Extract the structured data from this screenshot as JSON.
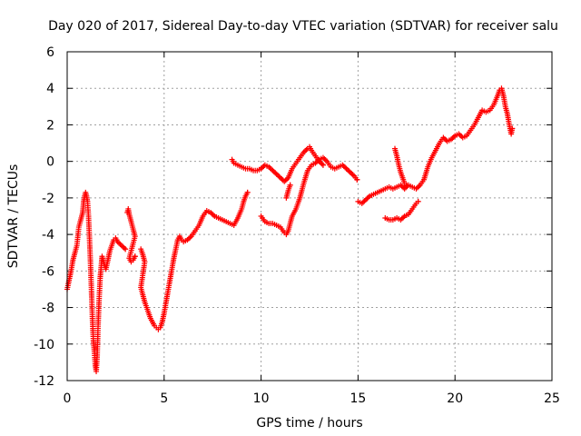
{
  "chart_data": {
    "type": "scatter",
    "title": "Day 020 of 2017, Sidereal Day-to-day VTEC variation (SDTVAR) for receiver salu",
    "xlabel": "GPS time / hours",
    "ylabel": "SDTVAR / TECUs",
    "xlim": [
      0,
      25
    ],
    "ylim": [
      -12,
      6
    ],
    "xticks": [
      0,
      5,
      10,
      15,
      20,
      25
    ],
    "yticks": [
      -12,
      -10,
      -8,
      -6,
      -4,
      -2,
      0,
      2,
      4,
      6
    ],
    "grid": true,
    "marker": "plus",
    "color": "#ff0000",
    "series": [
      {
        "points": [
          [
            0.0,
            -7.0
          ],
          [
            0.1,
            -6.5
          ],
          [
            0.2,
            -6.0
          ],
          [
            0.3,
            -5.4
          ],
          [
            0.4,
            -5.0
          ],
          [
            0.5,
            -4.6
          ],
          [
            0.6,
            -3.6
          ],
          [
            0.7,
            -3.2
          ],
          [
            0.8,
            -2.8
          ],
          [
            0.85,
            -2.2
          ],
          [
            0.9,
            -1.9
          ],
          [
            0.95,
            -1.7
          ],
          [
            1.0,
            -1.9
          ],
          [
            1.05,
            -2.2
          ],
          [
            1.1,
            -3.0
          ],
          [
            1.15,
            -4.2
          ],
          [
            1.2,
            -5.5
          ],
          [
            1.25,
            -7.0
          ],
          [
            1.3,
            -8.6
          ],
          [
            1.35,
            -9.8
          ],
          [
            1.4,
            -10.4
          ],
          [
            1.45,
            -11.2
          ],
          [
            1.5,
            -11.5
          ],
          [
            1.55,
            -10.6
          ],
          [
            1.6,
            -8.8
          ],
          [
            1.65,
            -7.5
          ],
          [
            1.7,
            -6.4
          ],
          [
            1.75,
            -5.8
          ],
          [
            1.8,
            -5.2
          ],
          [
            1.9,
            -5.6
          ],
          [
            2.0,
            -5.9
          ],
          [
            2.1,
            -5.4
          ],
          [
            2.2,
            -4.9
          ],
          [
            2.3,
            -4.6
          ],
          [
            2.4,
            -4.3
          ],
          [
            2.5,
            -4.2
          ],
          [
            2.6,
            -4.4
          ],
          [
            2.8,
            -4.6
          ],
          [
            3.0,
            -4.8
          ]
        ]
      },
      {
        "points": [
          [
            3.1,
            -2.8
          ],
          [
            3.15,
            -2.6
          ],
          [
            3.2,
            -2.9
          ],
          [
            3.3,
            -3.3
          ],
          [
            3.4,
            -3.7
          ],
          [
            3.5,
            -4.1
          ],
          [
            3.2,
            -5.3
          ],
          [
            3.3,
            -5.5
          ],
          [
            3.4,
            -5.4
          ],
          [
            3.5,
            -5.2
          ]
        ]
      },
      {
        "points": [
          [
            3.8,
            -4.8
          ],
          [
            3.9,
            -5.1
          ],
          [
            4.0,
            -5.5
          ],
          [
            3.8,
            -6.9
          ],
          [
            3.9,
            -7.3
          ],
          [
            4.0,
            -7.7
          ],
          [
            4.1,
            -8.0
          ],
          [
            4.2,
            -8.3
          ],
          [
            4.3,
            -8.6
          ],
          [
            4.4,
            -8.8
          ],
          [
            4.5,
            -9.0
          ],
          [
            4.6,
            -9.1
          ],
          [
            4.7,
            -9.2
          ],
          [
            4.8,
            -9.1
          ],
          [
            4.9,
            -8.8
          ],
          [
            5.0,
            -8.3
          ],
          [
            5.1,
            -7.7
          ],
          [
            5.2,
            -7.1
          ],
          [
            5.3,
            -6.5
          ],
          [
            5.4,
            -5.9
          ],
          [
            5.5,
            -5.3
          ],
          [
            5.6,
            -4.8
          ],
          [
            5.7,
            -4.3
          ],
          [
            5.8,
            -4.1
          ],
          [
            5.9,
            -4.3
          ],
          [
            6.0,
            -4.4
          ],
          [
            6.2,
            -4.3
          ],
          [
            6.4,
            -4.1
          ],
          [
            6.6,
            -3.8
          ],
          [
            6.8,
            -3.5
          ],
          [
            7.0,
            -3.0
          ],
          [
            7.2,
            -2.7
          ],
          [
            7.4,
            -2.8
          ],
          [
            7.6,
            -3.0
          ],
          [
            7.8,
            -3.1
          ],
          [
            8.0,
            -3.2
          ],
          [
            8.2,
            -3.3
          ],
          [
            8.4,
            -3.4
          ],
          [
            8.6,
            -3.5
          ],
          [
            8.8,
            -3.1
          ],
          [
            9.0,
            -2.6
          ],
          [
            9.1,
            -2.2
          ],
          [
            9.2,
            -1.9
          ],
          [
            9.3,
            -1.7
          ]
        ]
      },
      {
        "points": [
          [
            8.5,
            0.1
          ],
          [
            8.6,
            -0.1
          ],
          [
            8.8,
            -0.2
          ],
          [
            9.0,
            -0.3
          ],
          [
            9.2,
            -0.4
          ],
          [
            9.4,
            -0.4
          ],
          [
            9.6,
            -0.5
          ],
          [
            9.8,
            -0.5
          ],
          [
            10.0,
            -0.4
          ],
          [
            10.2,
            -0.2
          ],
          [
            10.4,
            -0.3
          ],
          [
            10.6,
            -0.5
          ],
          [
            10.8,
            -0.7
          ],
          [
            11.0,
            -0.9
          ],
          [
            11.2,
            -1.1
          ],
          [
            11.4,
            -0.9
          ],
          [
            11.6,
            -0.4
          ],
          [
            11.8,
            -0.1
          ],
          [
            12.0,
            0.2
          ],
          [
            12.2,
            0.5
          ],
          [
            12.4,
            0.7
          ],
          [
            12.5,
            0.8
          ],
          [
            12.6,
            0.6
          ],
          [
            12.8,
            0.3
          ],
          [
            13.0,
            0.0
          ],
          [
            13.2,
            -0.2
          ]
        ]
      },
      {
        "points": [
          [
            10.0,
            -3.0
          ],
          [
            10.2,
            -3.3
          ],
          [
            10.4,
            -3.4
          ],
          [
            10.6,
            -3.4
          ],
          [
            10.8,
            -3.5
          ],
          [
            11.0,
            -3.6
          ],
          [
            11.2,
            -3.9
          ],
          [
            11.3,
            -4.0
          ],
          [
            11.4,
            -3.8
          ],
          [
            11.5,
            -3.4
          ],
          [
            11.6,
            -3.0
          ],
          [
            11.8,
            -2.6
          ],
          [
            12.0,
            -2.0
          ],
          [
            12.2,
            -1.2
          ],
          [
            12.4,
            -0.5
          ],
          [
            12.6,
            -0.2
          ],
          [
            12.8,
            -0.1
          ],
          [
            13.0,
            0.1
          ],
          [
            13.2,
            0.2
          ],
          [
            13.4,
            0.0
          ],
          [
            13.6,
            -0.3
          ],
          [
            13.8,
            -0.4
          ],
          [
            14.0,
            -0.3
          ],
          [
            14.2,
            -0.2
          ],
          [
            14.4,
            -0.4
          ],
          [
            14.6,
            -0.6
          ],
          [
            14.8,
            -0.8
          ],
          [
            14.95,
            -1.0
          ]
        ]
      },
      {
        "points": [
          [
            11.3,
            -2.0
          ],
          [
            11.4,
            -1.6
          ],
          [
            11.5,
            -1.3
          ]
        ]
      },
      {
        "points": [
          [
            15.0,
            -2.2
          ],
          [
            15.2,
            -2.3
          ],
          [
            15.4,
            -2.1
          ],
          [
            15.6,
            -1.9
          ],
          [
            15.8,
            -1.8
          ],
          [
            16.0,
            -1.7
          ],
          [
            16.2,
            -1.6
          ],
          [
            16.4,
            -1.5
          ],
          [
            16.6,
            -1.4
          ],
          [
            16.8,
            -1.5
          ],
          [
            17.0,
            -1.4
          ],
          [
            17.2,
            -1.3
          ],
          [
            17.4,
            -1.5
          ],
          [
            17.6,
            -1.3
          ],
          [
            17.8,
            -1.4
          ],
          [
            18.0,
            -1.5
          ],
          [
            18.2,
            -1.3
          ],
          [
            18.4,
            -1.0
          ],
          [
            18.6,
            -0.3
          ],
          [
            18.8,
            0.2
          ],
          [
            19.0,
            0.6
          ],
          [
            19.2,
            1.0
          ],
          [
            19.4,
            1.3
          ],
          [
            19.6,
            1.1
          ],
          [
            19.8,
            1.2
          ],
          [
            20.0,
            1.4
          ],
          [
            20.2,
            1.5
          ],
          [
            20.4,
            1.3
          ],
          [
            20.6,
            1.4
          ],
          [
            20.8,
            1.7
          ],
          [
            21.0,
            2.0
          ],
          [
            21.2,
            2.4
          ],
          [
            21.4,
            2.8
          ],
          [
            21.6,
            2.7
          ],
          [
            21.8,
            2.8
          ],
          [
            22.0,
            3.1
          ],
          [
            22.2,
            3.6
          ],
          [
            22.3,
            3.9
          ],
          [
            22.4,
            4.0
          ],
          [
            22.5,
            3.6
          ],
          [
            22.6,
            3.0
          ],
          [
            22.7,
            2.6
          ],
          [
            22.8,
            2.0
          ],
          [
            22.9,
            1.5
          ],
          [
            22.95,
            1.8
          ]
        ]
      },
      {
        "points": [
          [
            16.9,
            0.7
          ],
          [
            17.0,
            0.3
          ],
          [
            17.1,
            -0.2
          ],
          [
            17.2,
            -0.6
          ],
          [
            17.3,
            -0.9
          ],
          [
            17.4,
            -1.2
          ],
          [
            17.5,
            -1.3
          ]
        ]
      },
      {
        "points": [
          [
            16.4,
            -3.1
          ],
          [
            16.6,
            -3.2
          ],
          [
            16.8,
            -3.2
          ],
          [
            17.0,
            -3.1
          ],
          [
            17.2,
            -3.2
          ],
          [
            17.4,
            -3.0
          ],
          [
            17.6,
            -2.9
          ],
          [
            17.8,
            -2.6
          ],
          [
            18.0,
            -2.3
          ],
          [
            18.1,
            -2.2
          ]
        ]
      }
    ]
  }
}
